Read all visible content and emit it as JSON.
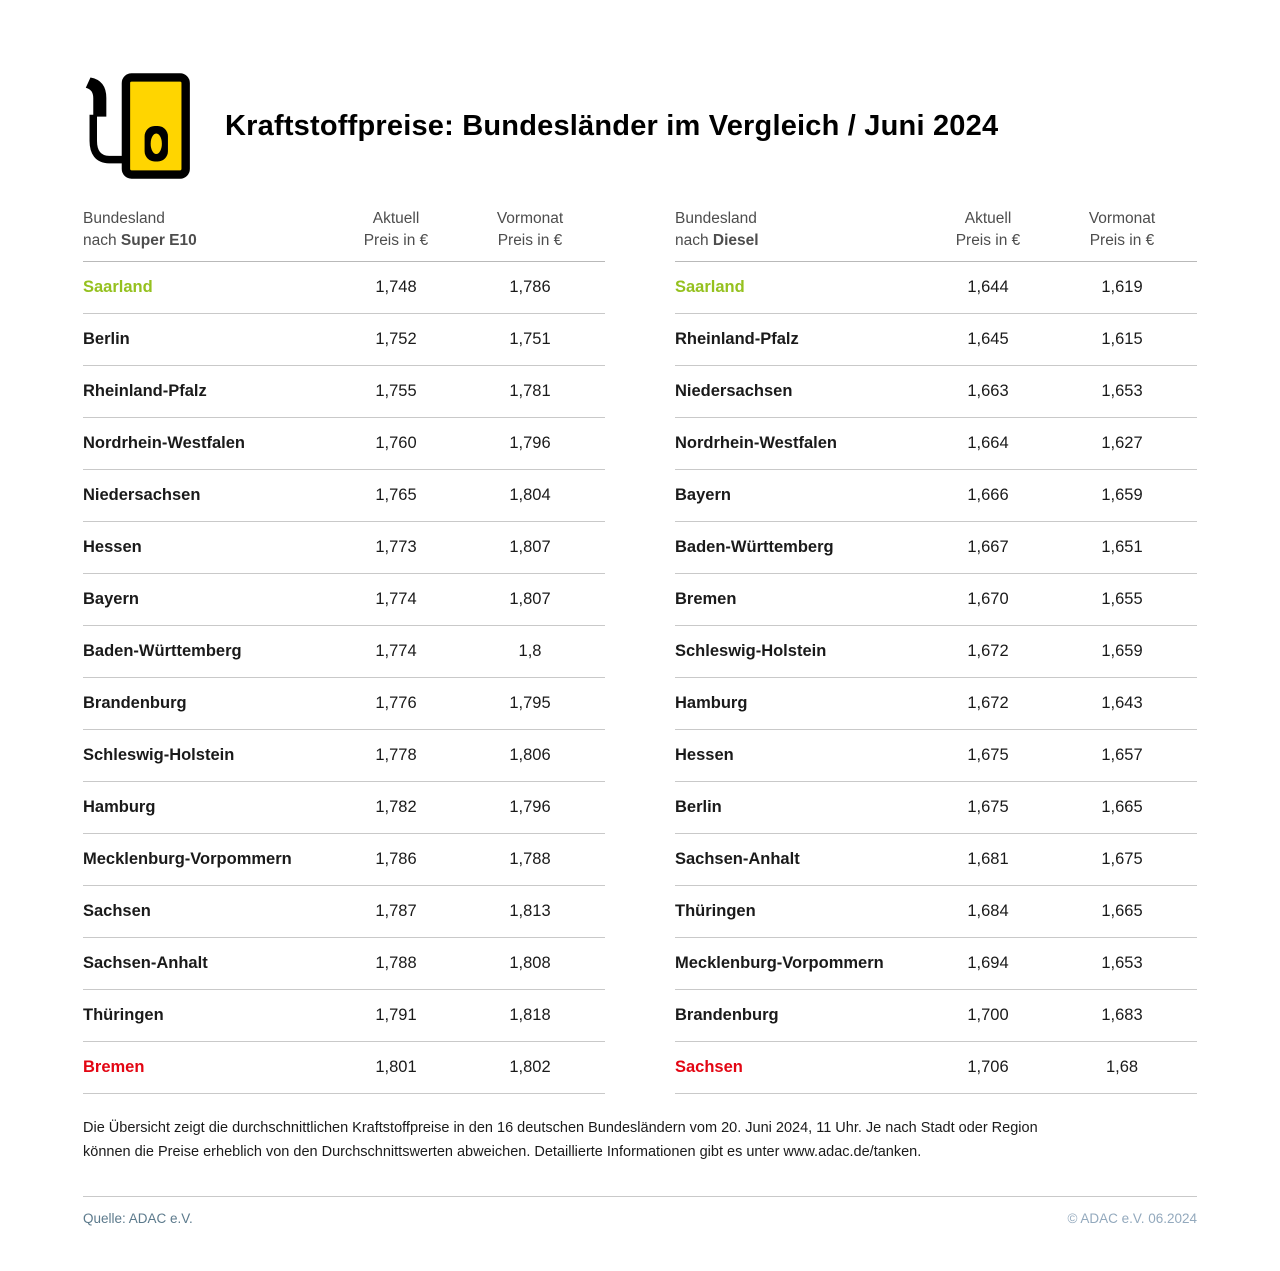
{
  "header": {
    "title": "Kraftstoffpreise: Bundesländer im Vergleich / Juni 2024",
    "icon": "fuel-pump-icon"
  },
  "chart_data": [
    {
      "type": "table",
      "fuel": "Super E10",
      "header": {
        "col1_top": "Bundesland",
        "col1_prefix": "nach ",
        "col1_fuel": "Super E10",
        "col2_top": "Aktuell",
        "col2_bottom": "Preis in €",
        "col3_top": "Vormonat",
        "col3_bottom": "Preis in €"
      },
      "rows": [
        {
          "state": "Saarland",
          "aktuell": "1,748",
          "vormonat": "1,786",
          "color": "green"
        },
        {
          "state": "Berlin",
          "aktuell": "1,752",
          "vormonat": "1,751",
          "color": ""
        },
        {
          "state": "Rheinland-Pfalz",
          "aktuell": "1,755",
          "vormonat": "1,781",
          "color": ""
        },
        {
          "state": "Nordrhein-Westfalen",
          "aktuell": "1,760",
          "vormonat": "1,796",
          "color": ""
        },
        {
          "state": "Niedersachsen",
          "aktuell": "1,765",
          "vormonat": "1,804",
          "color": ""
        },
        {
          "state": "Hessen",
          "aktuell": "1,773",
          "vormonat": "1,807",
          "color": ""
        },
        {
          "state": "Bayern",
          "aktuell": "1,774",
          "vormonat": "1,807",
          "color": ""
        },
        {
          "state": "Baden-Württemberg",
          "aktuell": "1,774",
          "vormonat": "1,8",
          "color": ""
        },
        {
          "state": "Brandenburg",
          "aktuell": "1,776",
          "vormonat": "1,795",
          "color": ""
        },
        {
          "state": "Schleswig-Holstein",
          "aktuell": "1,778",
          "vormonat": "1,806",
          "color": ""
        },
        {
          "state": "Hamburg",
          "aktuell": "1,782",
          "vormonat": "1,796",
          "color": ""
        },
        {
          "state": "Mecklenburg-Vorpommern",
          "aktuell": "1,786",
          "vormonat": "1,788",
          "color": ""
        },
        {
          "state": "Sachsen",
          "aktuell": "1,787",
          "vormonat": "1,813",
          "color": ""
        },
        {
          "state": "Sachsen-Anhalt",
          "aktuell": "1,788",
          "vormonat": "1,808",
          "color": ""
        },
        {
          "state": "Thüringen",
          "aktuell": "1,791",
          "vormonat": "1,818",
          "color": ""
        },
        {
          "state": "Bremen",
          "aktuell": "1,801",
          "vormonat": "1,802",
          "color": "red"
        }
      ]
    },
    {
      "type": "table",
      "fuel": "Diesel",
      "header": {
        "col1_top": "Bundesland",
        "col1_prefix": "nach ",
        "col1_fuel": "Diesel",
        "col2_top": "Aktuell",
        "col2_bottom": "Preis in €",
        "col3_top": "Vormonat",
        "col3_bottom": "Preis in €"
      },
      "rows": [
        {
          "state": "Saarland",
          "aktuell": "1,644",
          "vormonat": "1,619",
          "color": "green"
        },
        {
          "state": "Rheinland-Pfalz",
          "aktuell": "1,645",
          "vormonat": "1,615",
          "color": ""
        },
        {
          "state": "Niedersachsen",
          "aktuell": "1,663",
          "vormonat": "1,653",
          "color": ""
        },
        {
          "state": "Nordrhein-Westfalen",
          "aktuell": "1,664",
          "vormonat": "1,627",
          "color": ""
        },
        {
          "state": "Bayern",
          "aktuell": "1,666",
          "vormonat": "1,659",
          "color": ""
        },
        {
          "state": "Baden-Württemberg",
          "aktuell": "1,667",
          "vormonat": "1,651",
          "color": ""
        },
        {
          "state": "Bremen",
          "aktuell": "1,670",
          "vormonat": "1,655",
          "color": ""
        },
        {
          "state": "Schleswig-Holstein",
          "aktuell": "1,672",
          "vormonat": "1,659",
          "color": ""
        },
        {
          "state": "Hamburg",
          "aktuell": "1,672",
          "vormonat": "1,643",
          "color": ""
        },
        {
          "state": "Hessen",
          "aktuell": "1,675",
          "vormonat": "1,657",
          "color": ""
        },
        {
          "state": "Berlin",
          "aktuell": "1,675",
          "vormonat": "1,665",
          "color": ""
        },
        {
          "state": "Sachsen-Anhalt",
          "aktuell": "1,681",
          "vormonat": "1,675",
          "color": ""
        },
        {
          "state": "Thüringen",
          "aktuell": "1,684",
          "vormonat": "1,665",
          "color": ""
        },
        {
          "state": "Mecklenburg-Vorpommern",
          "aktuell": "1,694",
          "vormonat": "1,653",
          "color": ""
        },
        {
          "state": "Brandenburg",
          "aktuell": "1,700",
          "vormonat": "1,683",
          "color": ""
        },
        {
          "state": "Sachsen",
          "aktuell": "1,706",
          "vormonat": "1,68",
          "color": "red"
        }
      ]
    }
  ],
  "footnote": "Die Übersicht zeigt die durchschnittlichen Kraftstoffpreise in den 16 deutschen Bundesländern vom 20. Juni 2024, 11 Uhr. Je nach Stadt oder Region können die Preise erheblich von den Durchschnittswerten abweichen. Detaillierte Informationen gibt es unter www.adac.de/tanken.",
  "footer": {
    "source": "Quelle: ADAC e.V.",
    "copyright": "© ADAC e.V. 06.2024"
  },
  "colors": {
    "cheapest_green": "#95c11f",
    "most_expensive_red": "#e30613",
    "accent_yellow": "#ffd500"
  }
}
